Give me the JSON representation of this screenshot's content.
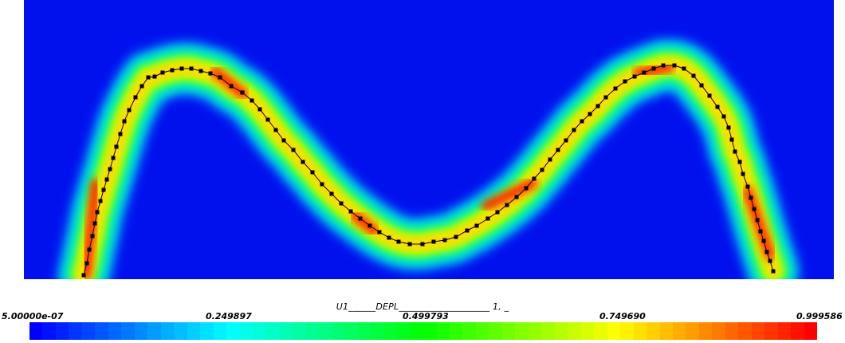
{
  "legend": {
    "title": "U1______DEPL____________________ 1, _",
    "ticks": [
      "5.00000e-07",
      "0.249897",
      "0.499793",
      "0.749690",
      "0.999586"
    ],
    "range": [
      5e-07,
      0.999586
    ]
  },
  "colors": {
    "background_field": "#0011ee",
    "colorbar_stops": [
      "#0000ff",
      "#00ffff",
      "#00ff00",
      "#ffff00",
      "#ff0000"
    ]
  }
}
